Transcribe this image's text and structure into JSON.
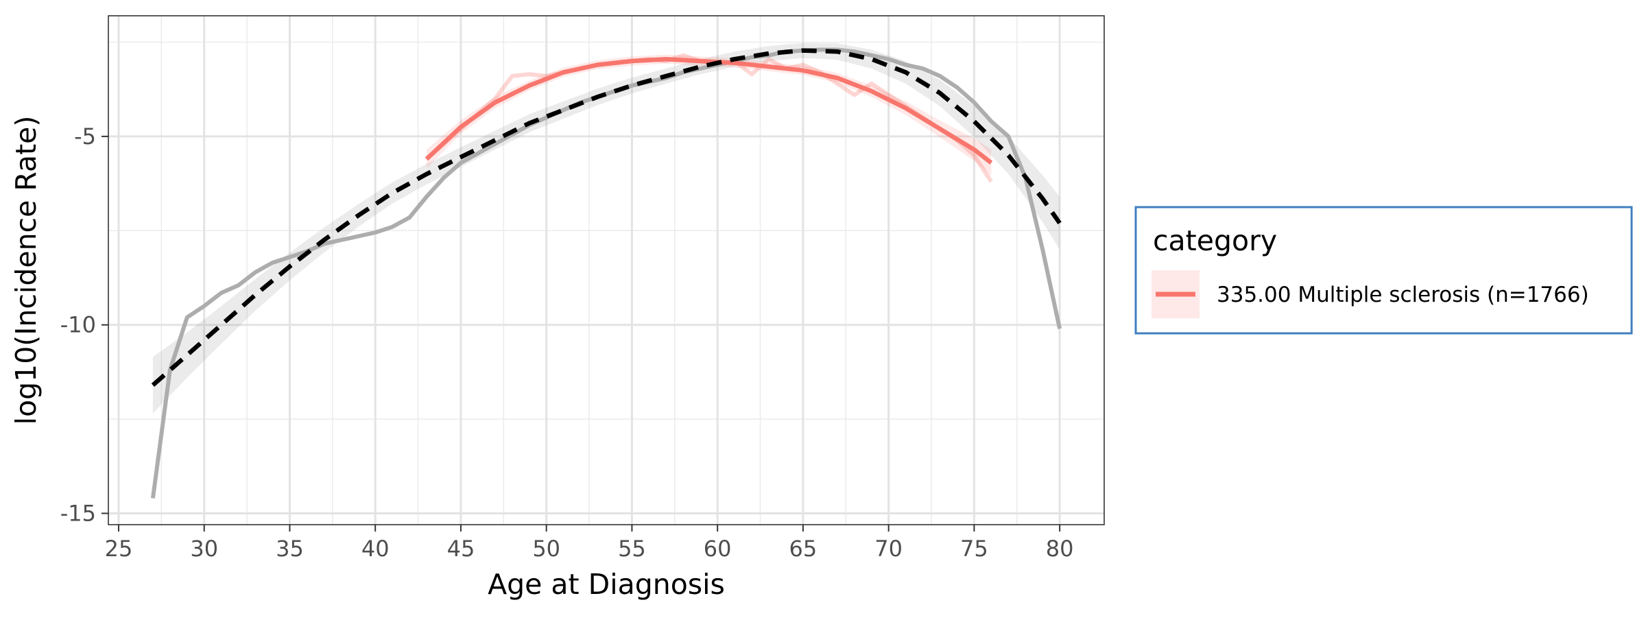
{
  "chart_data": {
    "type": "line",
    "xlabel": "Age at Diagnosis",
    "ylabel": "log10(Incidence Rate)",
    "xlim": [
      24.4,
      82.6
    ],
    "ylim": [
      -15.3,
      -1.8
    ],
    "x_ticks": [
      25,
      30,
      35,
      40,
      45,
      50,
      55,
      60,
      65,
      70,
      75,
      80
    ],
    "y_ticks": [
      -15,
      -10,
      -5
    ],
    "x_tick_labels": [
      "25",
      "30",
      "35",
      "40",
      "45",
      "50",
      "55",
      "60",
      "65",
      "70",
      "75",
      "80"
    ],
    "y_tick_labels": [
      "-15",
      "-10",
      "-5"
    ],
    "grid": true,
    "legend": {
      "title": "category",
      "position": "right",
      "entries": [
        {
          "label": "335.00 Multiple sclerosis (n=1766)",
          "color": "#F8766D"
        }
      ]
    },
    "series": [
      {
        "name": "335.00 Multiple sclerosis (n=1766)",
        "role": "category_raw",
        "color": "#F8766D",
        "x": [
          43,
          44,
          45,
          46,
          47,
          48,
          49,
          50,
          51,
          52,
          53,
          54,
          55,
          56,
          57,
          58,
          59,
          60,
          61,
          62,
          63,
          64,
          65,
          66,
          67,
          68,
          69,
          70,
          71,
          72,
          73,
          74,
          75,
          76
        ],
        "y": [
          -5.6,
          -5.2,
          -4.8,
          -4.4,
          -4.0,
          -3.4,
          -3.35,
          -3.4,
          -3.3,
          -3.2,
          -3.1,
          -3.05,
          -3.0,
          -2.95,
          -3.0,
          -2.85,
          -3.0,
          -3.1,
          -3.0,
          -3.35,
          -2.95,
          -3.2,
          -3.1,
          -3.3,
          -3.6,
          -3.9,
          -3.6,
          -3.9,
          -4.2,
          -4.5,
          -4.8,
          -5.1,
          -5.5,
          -6.2
        ]
      },
      {
        "name": "335.00 Multiple sclerosis (n=1766)",
        "role": "category_smooth",
        "color": "#F8766D",
        "x": [
          43,
          45,
          47,
          49,
          51,
          53,
          55,
          57,
          59,
          61,
          63,
          65,
          67,
          69,
          71,
          73,
          75,
          76
        ],
        "y": [
          -5.6,
          -4.75,
          -4.1,
          -3.65,
          -3.3,
          -3.1,
          -3.0,
          -2.95,
          -3.0,
          -3.05,
          -3.15,
          -3.25,
          -3.45,
          -3.8,
          -4.25,
          -4.8,
          -5.35,
          -5.7
        ],
        "band": [
          0.25,
          0.18,
          0.15,
          0.13,
          0.12,
          0.12,
          0.12,
          0.12,
          0.12,
          0.12,
          0.12,
          0.12,
          0.13,
          0.15,
          0.18,
          0.22,
          0.3,
          0.35
        ]
      },
      {
        "name": "",
        "role": "reference_raw",
        "color": "#ADADAD",
        "x": [
          27,
          28,
          29,
          30,
          31,
          32,
          33,
          34,
          35,
          36,
          37,
          38,
          39,
          40,
          41,
          42,
          43,
          44,
          45,
          46,
          47,
          48,
          49,
          50,
          51,
          52,
          53,
          54,
          55,
          56,
          57,
          58,
          59,
          60,
          61,
          62,
          63,
          64,
          65,
          66,
          67,
          68,
          69,
          70,
          71,
          72,
          73,
          74,
          75,
          76,
          77,
          78,
          79,
          80
        ],
        "y": [
          -14.6,
          -11.2,
          -9.8,
          -9.5,
          -9.15,
          -8.95,
          -8.6,
          -8.35,
          -8.2,
          -8.05,
          -7.85,
          -7.75,
          -7.65,
          -7.55,
          -7.4,
          -7.15,
          -6.6,
          -6.1,
          -5.7,
          -5.45,
          -5.2,
          -4.95,
          -4.7,
          -4.5,
          -4.3,
          -4.1,
          -3.95,
          -3.8,
          -3.65,
          -3.55,
          -3.45,
          -3.3,
          -3.2,
          -3.1,
          -3.0,
          -2.9,
          -2.85,
          -2.75,
          -2.72,
          -2.7,
          -2.7,
          -2.75,
          -2.85,
          -2.95,
          -3.1,
          -3.2,
          -3.4,
          -3.7,
          -4.1,
          -4.6,
          -5.0,
          -6.1,
          -8.0,
          -10.1
        ]
      },
      {
        "name": "",
        "role": "reference_smooth",
        "color": "#000000",
        "x": [
          27,
          29,
          31,
          33,
          35,
          37,
          39,
          41,
          43,
          45,
          47,
          49,
          51,
          53,
          55,
          57,
          59,
          61,
          63,
          65,
          67,
          69,
          71,
          73,
          75,
          77,
          79,
          80
        ],
        "y": [
          -11.6,
          -10.8,
          -10.0,
          -9.2,
          -8.45,
          -7.75,
          -7.1,
          -6.5,
          -6.0,
          -5.55,
          -5.1,
          -4.65,
          -4.3,
          -3.95,
          -3.65,
          -3.4,
          -3.15,
          -2.95,
          -2.8,
          -2.72,
          -2.75,
          -2.95,
          -3.3,
          -3.85,
          -4.6,
          -5.5,
          -6.65,
          -7.3
        ],
        "band": [
          0.75,
          0.6,
          0.5,
          0.42,
          0.37,
          0.33,
          0.3,
          0.28,
          0.27,
          0.26,
          0.25,
          0.24,
          0.23,
          0.22,
          0.21,
          0.2,
          0.2,
          0.2,
          0.2,
          0.2,
          0.22,
          0.25,
          0.3,
          0.35,
          0.42,
          0.5,
          0.62,
          0.7
        ]
      }
    ]
  }
}
